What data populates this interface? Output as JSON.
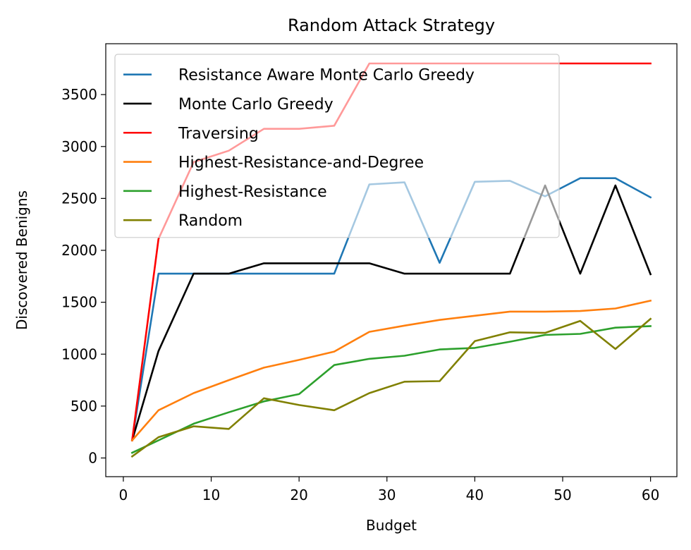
{
  "chart_data": {
    "type": "line",
    "title": "Random Attack Strategy",
    "xlabel": "Budget",
    "ylabel": "Discovered Benigns",
    "xlim": [
      -2,
      63
    ],
    "ylim": [
      -180,
      3990
    ],
    "xticks": [
      0,
      10,
      20,
      30,
      40,
      50,
      60
    ],
    "yticks": [
      0,
      500,
      1000,
      1500,
      2000,
      2500,
      3000,
      3500
    ],
    "legend_position": "upper-left",
    "grid": false,
    "x": [
      1,
      4,
      8,
      12,
      16,
      20,
      24,
      28,
      32,
      36,
      40,
      44,
      48,
      52,
      56,
      60
    ],
    "series": [
      {
        "name": "Resistance Aware Monte Carlo Greedy",
        "color": "#1f77b4",
        "values": [
          170,
          1775,
          1775,
          1775,
          1775,
          1775,
          1775,
          2635,
          2655,
          1880,
          2660,
          2670,
          2520,
          2695,
          2695,
          2510
        ]
      },
      {
        "name": "Monte Carlo Greedy",
        "color": "#000000",
        "values": [
          170,
          1030,
          1775,
          1775,
          1875,
          1875,
          1875,
          1875,
          1775,
          1775,
          1775,
          1775,
          2625,
          1775,
          2625,
          1770
        ]
      },
      {
        "name": "Traversing",
        "color": "#ff0000",
        "values": [
          170,
          2110,
          2850,
          2960,
          3170,
          3170,
          3200,
          3800,
          3800,
          3800,
          3800,
          3800,
          3800,
          3800,
          3800,
          3800
        ]
      },
      {
        "name": "Highest-Resistance-and-Degree",
        "color": "#ff7f0e",
        "values": [
          170,
          460,
          625,
          750,
          870,
          945,
          1025,
          1215,
          1275,
          1330,
          1370,
          1410,
          1410,
          1415,
          1440,
          1515
        ]
      },
      {
        "name": "Highest-Resistance",
        "color": "#2ca02c",
        "values": [
          50,
          170,
          330,
          440,
          545,
          615,
          895,
          955,
          985,
          1045,
          1060,
          1120,
          1185,
          1195,
          1255,
          1270
        ]
      },
      {
        "name": "Random",
        "color": "#808000",
        "values": [
          15,
          200,
          305,
          280,
          575,
          510,
          460,
          625,
          735,
          740,
          1125,
          1210,
          1205,
          1320,
          1050,
          1340
        ]
      }
    ]
  }
}
